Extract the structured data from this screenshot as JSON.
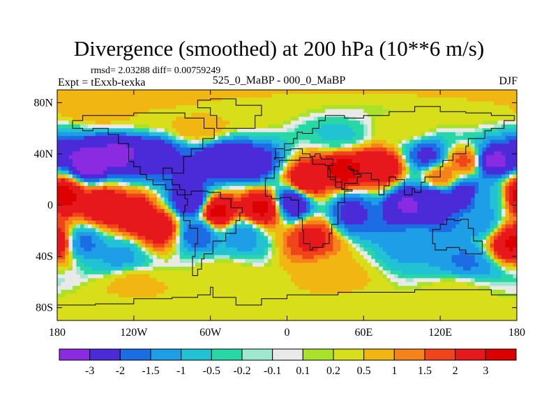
{
  "header": {
    "title": "Divergence (smoothed) at 200 hPa (10**6 m/s)",
    "stats": "rmsd= 2.03288 diff= 0.00759249",
    "experiment": "Expt = tExxb-texka",
    "comparison": "525_0_MaBP - 000_0_MaBP",
    "season": "DJF"
  },
  "chart_data": {
    "type": "heatmap",
    "title": "Divergence (smoothed) at 200 hPa (10**6 m/s)",
    "xlabel": "",
    "ylabel": "",
    "xlim": [
      -180,
      180
    ],
    "ylim": [
      -90,
      90
    ],
    "x_ticks": [
      {
        "value": -180,
        "label": "180"
      },
      {
        "value": -120,
        "label": "120W"
      },
      {
        "value": -60,
        "label": "60W"
      },
      {
        "value": 0,
        "label": "0"
      },
      {
        "value": 60,
        "label": "60E"
      },
      {
        "value": 120,
        "label": "120E"
      },
      {
        "value": 180,
        "label": "180"
      }
    ],
    "y_ticks": [
      {
        "value": 80,
        "label": "80N"
      },
      {
        "value": 40,
        "label": "40N"
      },
      {
        "value": 0,
        "label": "0"
      },
      {
        "value": -40,
        "label": "40S"
      },
      {
        "value": -80,
        "label": "80S"
      }
    ],
    "colorbar": {
      "labels": [
        "-3",
        "-2",
        "-1.5",
        "-1",
        "-0.5",
        "-0.2",
        "-0.1",
        "0.1",
        "0.2",
        "0.5",
        "1",
        "1.5",
        "2",
        "3"
      ],
      "colors": [
        "#8a2be2",
        "#4b2bd8",
        "#1c6ce4",
        "#1e9ee6",
        "#21c2d4",
        "#28d7a6",
        "#9fe8cf",
        "#e9e9e9",
        "#a8e22a",
        "#d8de1a",
        "#f2b612",
        "#f5821b",
        "#f0451a",
        "#e6181c",
        "#dd0000"
      ]
    },
    "features": [
      {
        "lon": -155,
        "lat": 32,
        "value": -3.5
      },
      {
        "lon": -130,
        "lat": 40,
        "value": -3.2
      },
      {
        "lon": -105,
        "lat": 40,
        "value": -2.6
      },
      {
        "lon": -72,
        "lat": 28,
        "value": -2.2
      },
      {
        "lon": -50,
        "lat": 36,
        "value": -3.0
      },
      {
        "lon": -25,
        "lat": 32,
        "value": -2.4
      },
      {
        "lon": 160,
        "lat": 35,
        "value": -3.4
      },
      {
        "lon": 110,
        "lat": 38,
        "value": -2.3
      },
      {
        "lon": 140,
        "lat": 35,
        "value": 1.8
      },
      {
        "lon": -175,
        "lat": 8,
        "value": 3.3
      },
      {
        "lon": -145,
        "lat": 0,
        "value": 2.9
      },
      {
        "lon": -120,
        "lat": -8,
        "value": 2.7
      },
      {
        "lon": -100,
        "lat": -18,
        "value": 2.6
      },
      {
        "lon": -55,
        "lat": -5,
        "value": 3.4
      },
      {
        "lon": -20,
        "lat": -2,
        "value": 3.2
      },
      {
        "lon": 15,
        "lat": 18,
        "value": 3.0
      },
      {
        "lon": 20,
        "lat": -25,
        "value": 2.2
      },
      {
        "lon": 45,
        "lat": 28,
        "value": 3.3
      },
      {
        "lon": 75,
        "lat": 30,
        "value": 2.8
      },
      {
        "lon": 120,
        "lat": 22,
        "value": 1.6
      },
      {
        "lon": 155,
        "lat": 5,
        "value": -1.0
      },
      {
        "lon": 178,
        "lat": -30,
        "value": 3.2
      },
      {
        "lon": 5,
        "lat": 3,
        "value": -3.1
      },
      {
        "lon": 50,
        "lat": -5,
        "value": -2.2
      },
      {
        "lon": 95,
        "lat": 0,
        "value": -3.1
      },
      {
        "lon": 115,
        "lat": 5,
        "value": -3.0
      },
      {
        "lon": 138,
        "lat": 8,
        "value": -2.8
      },
      {
        "lon": 150,
        "lat": -10,
        "value": -1.3
      },
      {
        "lon": -75,
        "lat": 3,
        "value": -3.0
      },
      {
        "lon": -70,
        "lat": -22,
        "value": -2.0
      },
      {
        "lon": -35,
        "lat": -24,
        "value": -1.3
      },
      {
        "lon": -160,
        "lat": -30,
        "value": -1.7
      },
      {
        "lon": -130,
        "lat": -40,
        "value": -1.2
      },
      {
        "lon": 100,
        "lat": -30,
        "value": -1.2
      },
      {
        "lon": 140,
        "lat": -45,
        "value": -1.6
      },
      {
        "lon": -140,
        "lat": 75,
        "value": 1.0
      },
      {
        "lon": -105,
        "lat": 70,
        "value": 0.4
      },
      {
        "lon": -70,
        "lat": 60,
        "value": 0.9
      },
      {
        "lon": -20,
        "lat": 70,
        "value": 0.3
      },
      {
        "lon": 40,
        "lat": 55,
        "value": -0.6
      },
      {
        "lon": 90,
        "lat": 60,
        "value": 0.4
      },
      {
        "lon": 140,
        "lat": 72,
        "value": 0.3
      },
      {
        "lon": -120,
        "lat": -60,
        "value": 0.6
      },
      {
        "lon": -50,
        "lat": -55,
        "value": 0.4
      },
      {
        "lon": 40,
        "lat": -55,
        "value": 0.6
      },
      {
        "lon": 130,
        "lat": -65,
        "value": 0.3
      }
    ]
  }
}
